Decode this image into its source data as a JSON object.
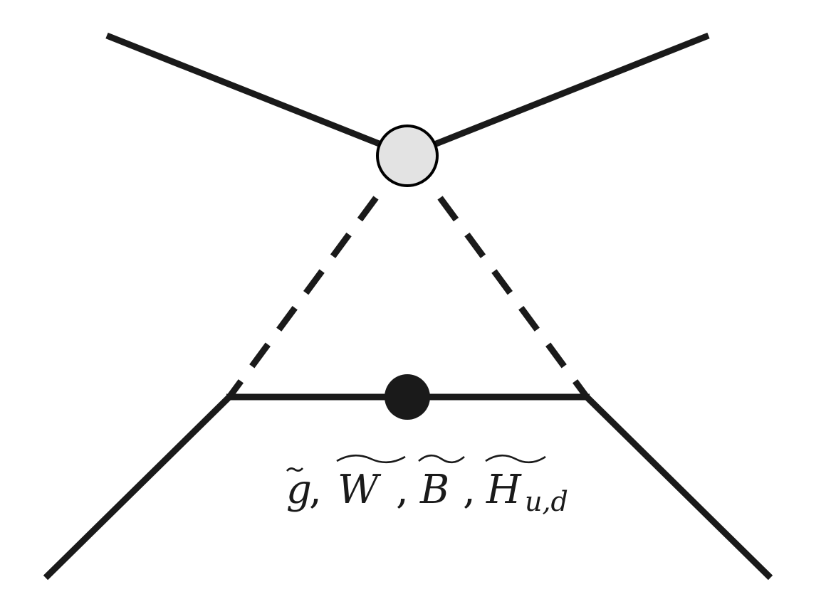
{
  "colors": {
    "line": "#1a1a1a",
    "blob_fill": "#e3e3e3",
    "blob_stroke": "#000000",
    "mass_insertion": "#1a1a1a"
  },
  "label": {
    "g": "g",
    "comma": ",",
    "W": "W",
    "B": "B",
    "H": "H",
    "subscript": "u,d"
  }
}
